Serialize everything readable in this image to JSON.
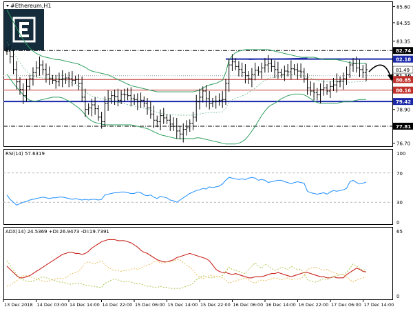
{
  "window_title": "#Ethereum,H1",
  "logo": {
    "name": "brand-logo-e",
    "color": "#152c3d"
  },
  "colors": {
    "price_bar": "#000000",
    "bollinger": "#2e9e5e",
    "support_line": "#1a28a8",
    "red_level": "#c0302a",
    "dashed_level": "#000000",
    "rsi_line": "#1e8fff",
    "adx_line": "#c8251e",
    "di_plus": "#9fc23c",
    "di_minus": "#e8b84a",
    "arrow": "#000000"
  },
  "chart_data": [
    {
      "type": "line",
      "panel": "price",
      "title": "#Ethereum,H1",
      "y_ticks": [
        85.6,
        84.55,
        83.35,
        82.3,
        81.15,
        80.1,
        78.9,
        77.85,
        76.7
      ],
      "ylim": [
        76.55,
        85.85
      ],
      "x_ticks": [
        "13 Dec 2018",
        "14 Dec 03:00",
        "14 Dec 14:00",
        "14 Dec 22:00",
        "15 Dec 06:00",
        "15 Dec 14:00",
        "15 Dec 22:00",
        "16 Dec 06:00",
        "16 Dec 14:00",
        "16 Dec 22:00",
        "17 Dec 06:00",
        "17 Dec 14:00"
      ],
      "price_label": "81.49",
      "price_value": 81.49,
      "levels": [
        {
          "value": 82.74,
          "label": "82.74",
          "style": "dashdot"
        },
        {
          "value": 82.18,
          "label": "82.18",
          "style": "solid-blue-partial"
        },
        {
          "value": 81.1,
          "label": "81.10",
          "style": "dot"
        },
        {
          "value": 80.85,
          "label": "80.85",
          "style": "red"
        },
        {
          "value": 80.16,
          "label": "80.16",
          "style": "red"
        },
        {
          "value": 79.42,
          "label": "79.42",
          "style": "solid-blue"
        },
        {
          "value": 77.81,
          "label": "77.81",
          "style": "dashdot"
        }
      ],
      "close": [
        82.7,
        82.35,
        81.5,
        80.7,
        80.2,
        79.8,
        80.4,
        80.9,
        81.3,
        81.6,
        81.8,
        81.5,
        81.2,
        80.9,
        80.8,
        80.7,
        80.85,
        80.9,
        80.95,
        80.9,
        80.8,
        80.85,
        80.6,
        79.7,
        78.9,
        79.0,
        79.2,
        78.95,
        78.4,
        78.1,
        79.3,
        79.6,
        79.8,
        79.75,
        79.5,
        79.9,
        79.85,
        79.8,
        79.6,
        79.55,
        79.4,
        79.5,
        79.3,
        79.0,
        78.6,
        78.2,
        78.1,
        78.5,
        78.35,
        78.2,
        77.95,
        77.8,
        77.5,
        77.3,
        77.6,
        77.7,
        78.0,
        78.4,
        79.4,
        79.7,
        80.1,
        79.6,
        79.3,
        79.4,
        79.45,
        79.5,
        79.55,
        80.6,
        81.8,
        82.0,
        81.7,
        81.5,
        81.3,
        81.1,
        80.9,
        81.2,
        81.45,
        81.35,
        81.6,
        81.8,
        81.9,
        81.7,
        81.5,
        81.3,
        81.2,
        81.4,
        81.35,
        81.55,
        81.5,
        81.4,
        81.35,
        80.9,
        80.3,
        80.1,
        80.0,
        79.85,
        80.2,
        80.3,
        80.1,
        80.4,
        80.5,
        80.7,
        80.75,
        80.9,
        81.2,
        81.8,
        81.9,
        81.6,
        81.5,
        81.3,
        81.49
      ],
      "bb_upper": [
        85.4,
        85.0,
        84.6,
        84.2,
        83.8,
        83.45,
        83.15,
        82.9,
        82.7,
        82.55,
        82.45,
        82.35,
        82.3,
        82.25,
        82.2,
        82.15,
        82.15,
        82.1,
        82.05,
        82.0,
        81.95,
        81.9,
        81.85,
        81.75,
        81.65,
        81.5,
        81.4,
        81.35,
        81.3,
        81.25,
        81.2,
        81.15,
        81.05,
        80.95,
        80.85,
        80.75,
        80.65,
        80.55,
        80.45,
        80.4,
        80.35,
        80.3,
        80.25,
        80.2,
        80.15,
        80.1,
        80.05,
        80.05,
        80.05,
        80.05,
        80.05,
        80.05,
        80.05,
        80.05,
        80.05,
        80.05,
        80.05,
        80.05,
        80.1,
        80.15,
        80.3,
        80.4,
        80.5,
        80.55,
        80.6,
        80.7,
        80.8,
        81.3,
        82.1,
        82.4,
        82.6,
        82.7,
        82.75,
        82.8,
        82.8,
        82.8,
        82.8,
        82.8,
        82.8,
        82.8,
        82.8,
        82.75,
        82.7,
        82.65,
        82.6,
        82.55,
        82.5,
        82.45,
        82.4,
        82.35,
        82.3,
        82.3,
        82.3,
        82.3,
        82.3,
        82.25,
        82.2,
        82.15,
        82.15,
        82.15,
        82.15,
        82.15,
        82.1,
        82.05,
        82.0,
        81.95,
        81.9,
        81.9,
        81.9,
        81.9,
        81.9
      ],
      "bb_lower": [
        81.2,
        80.9,
        80.6,
        80.35,
        80.1,
        79.85,
        79.65,
        79.5,
        79.45,
        79.45,
        79.5,
        79.55,
        79.6,
        79.65,
        79.7,
        79.7,
        79.7,
        79.65,
        79.55,
        79.45,
        79.3,
        79.15,
        79.0,
        78.8,
        78.55,
        78.3,
        78.15,
        78.05,
        78.0,
        77.95,
        77.9,
        77.9,
        77.9,
        77.9,
        77.9,
        77.9,
        77.9,
        77.9,
        77.9,
        77.85,
        77.8,
        77.75,
        77.7,
        77.65,
        77.55,
        77.45,
        77.35,
        77.25,
        77.2,
        77.15,
        77.1,
        77.05,
        77.0,
        77.0,
        77.0,
        77.0,
        77.0,
        77.0,
        77.05,
        77.05,
        77.0,
        76.95,
        76.9,
        76.85,
        76.8,
        76.75,
        76.7,
        76.65,
        76.65,
        76.65,
        76.65,
        76.7,
        76.8,
        76.95,
        77.2,
        77.5,
        77.8,
        78.15,
        78.5,
        78.8,
        79.05,
        79.2,
        79.3,
        79.45,
        79.6,
        79.7,
        79.8,
        79.85,
        79.9,
        79.9,
        79.9,
        79.85,
        79.75,
        79.6,
        79.45,
        79.35,
        79.3,
        79.3,
        79.3,
        79.3,
        79.3,
        79.3,
        79.35,
        79.4,
        79.4,
        79.4,
        79.45,
        79.5,
        79.55,
        79.55,
        79.55
      ]
    },
    {
      "type": "line",
      "panel": "rsi",
      "label": "RSI(14) 57.6319",
      "ylim": [
        0,
        100
      ],
      "y_ticks": [
        100,
        70,
        30,
        0
      ],
      "levels": [
        70,
        30
      ],
      "values": [
        40,
        34,
        30,
        26,
        28,
        30,
        31,
        33,
        34,
        35,
        36,
        37,
        36,
        35,
        36,
        36,
        37,
        37,
        36,
        35,
        34,
        35,
        34,
        33,
        34,
        33,
        34,
        34,
        33,
        34,
        40,
        41,
        42,
        43,
        43,
        44,
        44,
        43,
        42,
        42,
        44,
        43,
        40,
        39,
        40,
        37,
        35,
        38,
        37,
        36,
        33,
        32,
        30,
        33,
        36,
        39,
        42,
        44,
        46,
        47,
        49,
        48,
        51,
        50,
        51,
        52,
        55,
        60,
        64,
        63,
        62,
        61,
        62,
        61,
        63,
        64,
        63,
        60,
        61,
        60,
        57,
        58,
        59,
        60,
        60,
        58,
        57,
        55,
        57,
        58,
        57,
        56,
        45,
        43,
        42,
        41,
        42,
        43,
        41,
        44,
        46,
        45,
        46,
        47,
        49,
        58,
        60,
        57,
        55,
        56,
        57.63
      ]
    },
    {
      "type": "line",
      "panel": "adx",
      "label": "ADX(14) 24.5369 +DI:26.9473 -DI:19.7391",
      "ylim": [
        0,
        65
      ],
      "y_ticks": [
        65,
        0
      ],
      "series": [
        {
          "name": "ADX(14)",
          "values": [
            30,
            27,
            24,
            21,
            19,
            19,
            20,
            21,
            23,
            25,
            27,
            29,
            31,
            33,
            35,
            37,
            39,
            41,
            42,
            43,
            43,
            42,
            42,
            41,
            42,
            44,
            47,
            49,
            51,
            53,
            54,
            55,
            55,
            55,
            54,
            54,
            54,
            53,
            52,
            50,
            48,
            45,
            43,
            42,
            40,
            38,
            36,
            35,
            34,
            34,
            35,
            36,
            38,
            39,
            40,
            41,
            42,
            41,
            40,
            39,
            38,
            37,
            35,
            31,
            27,
            25,
            24,
            24,
            23,
            22,
            23,
            22,
            21,
            20,
            19,
            19,
            20,
            20,
            20,
            21,
            22,
            23,
            23,
            24,
            23,
            22,
            21,
            20,
            21,
            22,
            23,
            24,
            24,
            23,
            22,
            21,
            20,
            20,
            19,
            19,
            20,
            19,
            19,
            19,
            22,
            24,
            26,
            28,
            27,
            25,
            24.54
          ]
        },
        {
          "name": "+DI",
          "values": [
            35,
            31,
            26,
            22,
            19,
            17,
            16,
            15,
            16,
            17,
            19,
            20,
            19,
            18,
            17,
            16,
            15,
            15,
            14,
            13,
            13,
            14,
            14,
            13,
            12,
            12,
            11,
            11,
            10,
            10,
            14,
            15,
            17,
            18,
            17,
            16,
            15,
            16,
            15,
            14,
            14,
            13,
            12,
            11,
            11,
            10,
            10,
            11,
            10,
            10,
            9,
            9,
            9,
            9,
            10,
            11,
            12,
            14,
            17,
            19,
            21,
            20,
            19,
            19,
            20,
            20,
            21,
            25,
            29,
            27,
            26,
            25,
            24,
            23,
            27,
            30,
            33,
            30,
            28,
            32,
            30,
            28,
            26,
            27,
            29,
            28,
            27,
            30,
            28,
            27,
            27,
            23,
            17,
            16,
            15,
            15,
            17,
            18,
            17,
            19,
            20,
            21,
            22,
            22,
            24,
            28,
            32,
            30,
            28,
            26,
            26.95
          ]
        },
        {
          "name": "-DI",
          "values": [
            11,
            12,
            14,
            16,
            19,
            21,
            21,
            20,
            19,
            18,
            17,
            16,
            15,
            16,
            17,
            18,
            19,
            18,
            19,
            21,
            23,
            24,
            25,
            29,
            33,
            34,
            33,
            32,
            34,
            35,
            31,
            29,
            27,
            26,
            26,
            25,
            26,
            26,
            27,
            28,
            27,
            28,
            30,
            31,
            32,
            34,
            35,
            33,
            33,
            34,
            34,
            35,
            36,
            36,
            33,
            31,
            29,
            26,
            22,
            20,
            18,
            20,
            21,
            21,
            20,
            20,
            19,
            17,
            14,
            15,
            16,
            17,
            18,
            19,
            17,
            15,
            14,
            16,
            17,
            16,
            17,
            18,
            19,
            18,
            17,
            18,
            19,
            17,
            18,
            18,
            18,
            21,
            27,
            28,
            29,
            29,
            27,
            26,
            27,
            25,
            24,
            23,
            22,
            22,
            20,
            17,
            15,
            17,
            18,
            19,
            19.74
          ]
        }
      ]
    }
  ]
}
